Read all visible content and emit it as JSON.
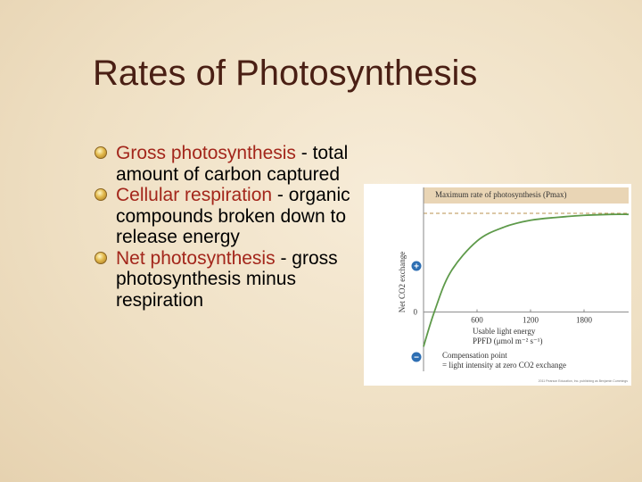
{
  "slide": {
    "title": "Rates of Photosynthesis",
    "bullets": [
      {
        "term": "Gross photosynthesis",
        "rest": " - total amount of carbon captured"
      },
      {
        "term": "Cellular respiration",
        "rest": " - organic compounds broken down to release energy"
      },
      {
        "term": "Net photosynthesis",
        "rest": " - gross photosynthesis minus respiration"
      }
    ]
  },
  "colors": {
    "term": "#a3261b",
    "curve": "#5e9a4a",
    "pmax_band": "#e9d5b5",
    "plus_badge": "#2e6fb3"
  },
  "chart_data": {
    "type": "line",
    "ylabel": "Net CO2 exchange",
    "xlabel_line1": "Usable light energy",
    "xlabel_line2": "PPFD (μmol m⁻² s⁻¹)",
    "xticks": [
      "600",
      "1200",
      "1800"
    ],
    "y_zero_label": "0",
    "plus_symbol": "+",
    "minus_symbol": "−",
    "pmax_label": "Maximum rate of photosynthesis (Pmax)",
    "compensation_label_line1": "Compensation point",
    "compensation_label_line2": "= light intensity at zero CO2 exchange",
    "copyright": "2011 Pearson Education, Inc. publishing as Benjamin Cummings",
    "series": [
      {
        "x": [
          0,
          120,
          300,
          600,
          900,
          1200,
          1500,
          1800,
          2100,
          2300
        ],
        "y": [
          -0.35,
          0.0,
          0.4,
          0.72,
          0.86,
          0.93,
          0.96,
          0.98,
          0.99,
          0.99
        ]
      }
    ],
    "xlim": [
      0,
      2300
    ],
    "ylim": [
      -0.6,
      1.1
    ],
    "pmax": 1.0,
    "compensation_x": 120
  }
}
